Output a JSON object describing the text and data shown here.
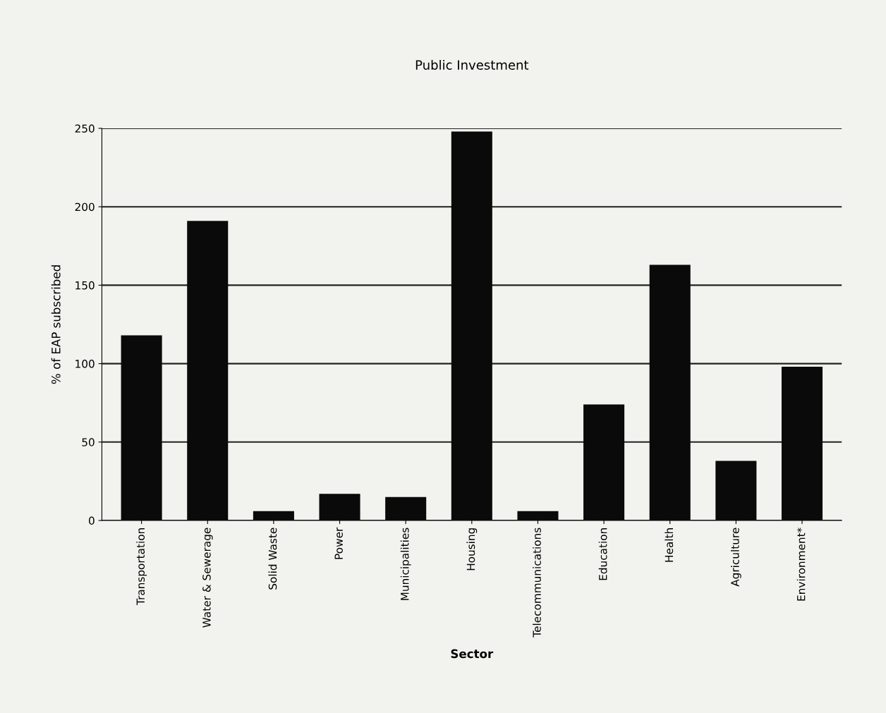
{
  "chart_data": {
    "type": "bar",
    "title": "Public Investment",
    "xlabel": "Sector",
    "ylabel": "% of EAP subscribed",
    "categories": [
      "Transportation",
      "Water & Sewerage",
      "Solid Waste",
      "Power",
      "Municipalities",
      "Housing",
      "Telecommunications",
      "Education",
      "Health",
      "Agriculture",
      "Environment*"
    ],
    "values": [
      118,
      191,
      6,
      17,
      15,
      248,
      6,
      74,
      163,
      38,
      98
    ],
    "color": "#0a0a0a",
    "ylim": [
      0,
      250
    ],
    "yticks": [
      0,
      50,
      100,
      150,
      200,
      250
    ],
    "grid": "y"
  }
}
